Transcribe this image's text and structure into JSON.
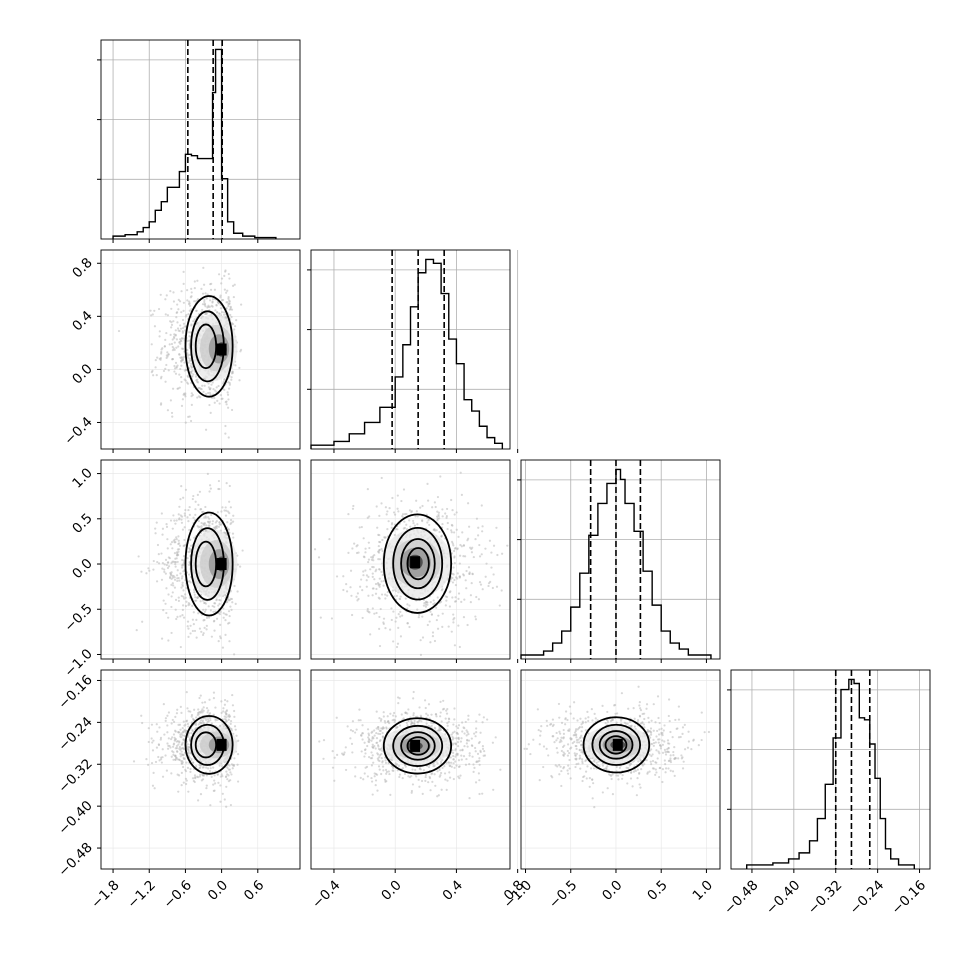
{
  "chart_data": {
    "type": "corner",
    "grid": true,
    "params": [
      {
        "range": [
          -2.0,
          1.3
        ],
        "ticks": [
          -1.8,
          -1.2,
          -0.6,
          0.0,
          0.6
        ],
        "tick_labels": [
          "−1.8",
          "−1.2",
          "−0.6",
          "0.0",
          "0.6"
        ],
        "hist": {
          "bins": [
            [
              -1.8,
              -1.6
            ],
            [
              -1.6,
              -1.4
            ],
            [
              -1.4,
              -1.3
            ],
            [
              -1.3,
              -1.2
            ],
            [
              -1.2,
              -1.1
            ],
            [
              -1.1,
              -1.0
            ],
            [
              -1.0,
              -0.9
            ],
            [
              -0.9,
              -0.7
            ],
            [
              -0.7,
              -0.6
            ],
            [
              -0.6,
              -0.5
            ],
            [
              -0.5,
              -0.4
            ],
            [
              -0.4,
              -0.3
            ],
            [
              -0.3,
              -0.15
            ],
            [
              -0.15,
              -0.1
            ],
            [
              -0.1,
              0.0
            ],
            [
              0.0,
              0.1
            ],
            [
              0.1,
              0.2
            ],
            [
              0.2,
              0.35
            ],
            [
              0.35,
              0.55
            ],
            [
              0.55,
              0.9
            ]
          ],
          "counts": [
            0.02,
            0.03,
            0.05,
            0.08,
            0.12,
            0.2,
            0.26,
            0.36,
            0.47,
            0.59,
            0.58,
            0.56,
            0.56,
            1.02,
            1.32,
            0.42,
            0.12,
            0.04,
            0.02,
            0.01
          ]
        },
        "quantiles": [
          -0.56,
          -0.14,
          0.01
        ]
      },
      {
        "range": [
          -0.55,
          0.75
        ],
        "ticks": [
          -0.4,
          0.0,
          0.4
        ],
        "tick_labels": [
          "−0.4",
          "0.0",
          "0.4"
        ],
        "x_tick_labels": [
          "−0.4",
          "0.0",
          "0.4",
          "0.8"
        ],
        "x_ticks": [
          -0.4,
          0.0,
          0.4,
          0.8
        ],
        "y_ticks": [
          -0.4,
          0.0,
          0.4,
          0.8
        ],
        "y_tick_labels": [
          "−0.4",
          "0.0",
          "0.4",
          "0.8"
        ],
        "y_range": [
          -0.6,
          0.9
        ],
        "hist": {
          "bins": [
            [
              -0.55,
              -0.4
            ],
            [
              -0.4,
              -0.3
            ],
            [
              -0.3,
              -0.2
            ],
            [
              -0.2,
              -0.1
            ],
            [
              -0.1,
              0.0
            ],
            [
              0.0,
              0.05
            ],
            [
              0.05,
              0.1
            ],
            [
              0.1,
              0.15
            ],
            [
              0.15,
              0.2
            ],
            [
              0.2,
              0.25
            ],
            [
              0.25,
              0.3
            ],
            [
              0.3,
              0.35
            ],
            [
              0.35,
              0.4
            ],
            [
              0.4,
              0.45
            ],
            [
              0.45,
              0.5
            ],
            [
              0.5,
              0.55
            ],
            [
              0.55,
              0.6
            ],
            [
              0.6,
              0.65
            ],
            [
              0.65,
              0.7
            ]
          ],
          "counts": [
            0.02,
            0.04,
            0.08,
            0.14,
            0.22,
            0.38,
            0.55,
            0.75,
            0.93,
            1.0,
            0.98,
            0.82,
            0.58,
            0.45,
            0.26,
            0.2,
            0.12,
            0.06,
            0.03
          ]
        },
        "quantiles": [
          -0.02,
          0.15,
          0.32
        ]
      },
      {
        "range": [
          -1.05,
          1.15
        ],
        "ticks": [
          -1.0,
          -0.5,
          0.0,
          0.5,
          1.0
        ],
        "tick_labels": [
          "−1.0",
          "−0.5",
          "0.0",
          "0.5",
          "1.0"
        ],
        "hist": {
          "bins": [
            [
              -1.05,
              -0.8
            ],
            [
              -0.8,
              -0.7
            ],
            [
              -0.7,
              -0.6
            ],
            [
              -0.6,
              -0.5
            ],
            [
              -0.5,
              -0.4
            ],
            [
              -0.4,
              -0.3
            ],
            [
              -0.3,
              -0.2
            ],
            [
              -0.2,
              -0.1
            ],
            [
              -0.1,
              0.0
            ],
            [
              0.0,
              0.05
            ],
            [
              0.05,
              0.1
            ],
            [
              0.1,
              0.2
            ],
            [
              0.2,
              0.3
            ],
            [
              0.3,
              0.4
            ],
            [
              0.4,
              0.5
            ],
            [
              0.5,
              0.6
            ],
            [
              0.6,
              0.7
            ],
            [
              0.7,
              0.8
            ],
            [
              0.8,
              1.05
            ]
          ],
          "counts": [
            0.02,
            0.04,
            0.08,
            0.14,
            0.26,
            0.43,
            0.62,
            0.78,
            0.88,
            0.95,
            0.9,
            0.78,
            0.64,
            0.44,
            0.27,
            0.14,
            0.08,
            0.05,
            0.02
          ]
        },
        "quantiles": [
          -0.28,
          0.0,
          0.27
        ]
      },
      {
        "range": [
          -0.52,
          -0.14
        ],
        "ticks": [
          -0.48,
          -0.4,
          -0.32,
          -0.24,
          -0.16
        ],
        "tick_labels": [
          "−0.48",
          "−0.40",
          "−0.32",
          "−0.24",
          "−0.16"
        ],
        "hist": {
          "bins": [
            [
              -0.49,
              -0.44
            ],
            [
              -0.44,
              -0.41
            ],
            [
              -0.41,
              -0.39
            ],
            [
              -0.39,
              -0.37
            ],
            [
              -0.37,
              -0.355
            ],
            [
              -0.355,
              -0.34
            ],
            [
              -0.34,
              -0.325
            ],
            [
              -0.325,
              -0.31
            ],
            [
              -0.31,
              -0.295
            ],
            [
              -0.295,
              -0.285
            ],
            [
              -0.285,
              -0.275
            ],
            [
              -0.275,
              -0.265
            ],
            [
              -0.265,
              -0.255
            ],
            [
              -0.255,
              -0.245
            ],
            [
              -0.245,
              -0.235
            ],
            [
              -0.235,
              -0.225
            ],
            [
              -0.225,
              -0.215
            ],
            [
              -0.215,
              -0.2
            ],
            [
              -0.2,
              -0.17
            ]
          ],
          "counts": [
            0.02,
            0.03,
            0.05,
            0.08,
            0.14,
            0.25,
            0.42,
            0.65,
            0.89,
            0.94,
            0.92,
            0.75,
            0.74,
            0.62,
            0.45,
            0.25,
            0.1,
            0.05,
            0.02
          ]
        },
        "quantiles": [
          -0.32,
          -0.29,
          -0.255
        ]
      }
    ],
    "pairs": [
      {
        "row": 1,
        "col": 0,
        "mode": [
          0.0,
          0.15
        ],
        "mode_center": [
          -0.26,
          0.18
        ],
        "spread": [
          0.34,
          0.22
        ],
        "levels": [
          0.5,
          0.8,
          1.15
        ],
        "squash_right": 0.08
      },
      {
        "row": 2,
        "col": 0,
        "mode": [
          0.0,
          0.0
        ],
        "mode_center": [
          -0.26,
          0.0
        ],
        "spread": [
          0.34,
          0.33
        ],
        "levels": [
          0.5,
          0.8,
          1.15
        ],
        "squash_right": 0.08
      },
      {
        "row": 2,
        "col": 1,
        "mode": [
          0.13,
          0.02
        ],
        "mode_center": [
          0.15,
          0.0
        ],
        "spread": [
          0.2,
          0.33
        ],
        "levels": [
          0.35,
          0.55,
          0.8,
          1.1
        ]
      },
      {
        "row": 3,
        "col": 0,
        "mode": [
          0.0,
          -0.283
        ],
        "mode_center": [
          -0.26,
          -0.283
        ],
        "spread": [
          0.34,
          0.032
        ],
        "levels": [
          0.5,
          0.8,
          1.15
        ],
        "squash_right": 0.08
      },
      {
        "row": 3,
        "col": 1,
        "mode": [
          0.13,
          -0.285
        ],
        "mode_center": [
          0.15,
          -0.285
        ],
        "spread": [
          0.2,
          0.032
        ],
        "levels": [
          0.35,
          0.55,
          0.8,
          1.1
        ]
      },
      {
        "row": 3,
        "col": 2,
        "mode": [
          0.02,
          -0.283
        ],
        "mode_center": [
          0.0,
          -0.283
        ],
        "spread": [
          0.33,
          0.032
        ],
        "levels": [
          0.35,
          0.55,
          0.8,
          1.1
        ]
      }
    ]
  }
}
